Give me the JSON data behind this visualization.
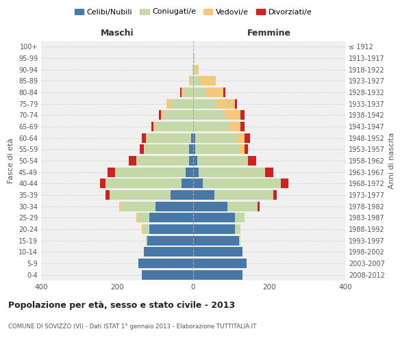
{
  "age_groups": [
    "0-4",
    "5-9",
    "10-14",
    "15-19",
    "20-24",
    "25-29",
    "30-34",
    "35-39",
    "40-44",
    "45-49",
    "50-54",
    "55-59",
    "60-64",
    "65-69",
    "70-74",
    "75-79",
    "80-84",
    "85-89",
    "90-94",
    "95-99",
    "100+"
  ],
  "birth_years": [
    "2008-2012",
    "2003-2007",
    "1998-2002",
    "1993-1997",
    "1988-1992",
    "1983-1987",
    "1978-1982",
    "1973-1977",
    "1968-1972",
    "1963-1967",
    "1958-1962",
    "1953-1957",
    "1948-1952",
    "1943-1947",
    "1938-1942",
    "1933-1937",
    "1928-1932",
    "1923-1927",
    "1918-1922",
    "1913-1917",
    "≤ 1912"
  ],
  "males": {
    "celibi": [
      135,
      145,
      130,
      120,
      115,
      115,
      100,
      60,
      30,
      20,
      10,
      10,
      5,
      0,
      0,
      0,
      0,
      0,
      0,
      0,
      0
    ],
    "coniugati": [
      0,
      0,
      0,
      5,
      15,
      30,
      90,
      160,
      200,
      185,
      140,
      120,
      115,
      100,
      80,
      60,
      25,
      5,
      2,
      0,
      0
    ],
    "vedovi": [
      0,
      0,
      0,
      0,
      5,
      5,
      5,
      0,
      0,
      0,
      0,
      0,
      5,
      5,
      5,
      10,
      5,
      5,
      0,
      0,
      0
    ],
    "divorziati": [
      0,
      0,
      0,
      0,
      0,
      0,
      0,
      10,
      15,
      20,
      20,
      10,
      10,
      5,
      5,
      0,
      5,
      0,
      0,
      0,
      0
    ]
  },
  "females": {
    "nubili": [
      130,
      140,
      130,
      120,
      110,
      110,
      90,
      55,
      25,
      15,
      10,
      5,
      5,
      0,
      0,
      0,
      0,
      0,
      0,
      0,
      0
    ],
    "coniugate": [
      0,
      0,
      0,
      5,
      15,
      25,
      80,
      155,
      205,
      175,
      130,
      115,
      110,
      95,
      85,
      65,
      35,
      20,
      5,
      2,
      0
    ],
    "vedove": [
      0,
      0,
      0,
      0,
      0,
      0,
      0,
      0,
      0,
      0,
      5,
      15,
      20,
      30,
      40,
      45,
      45,
      40,
      10,
      2,
      0
    ],
    "divorziate": [
      0,
      0,
      0,
      0,
      0,
      0,
      5,
      10,
      20,
      20,
      20,
      10,
      15,
      10,
      10,
      5,
      5,
      0,
      0,
      0,
      0
    ]
  },
  "colors": {
    "celibi": "#4878a8",
    "coniugati": "#c5d9a8",
    "vedovi": "#f5c87a",
    "divorziati": "#cc2222"
  },
  "xlim": 400,
  "title": "Popolazione per età, sesso e stato civile - 2013",
  "subtitle": "COMUNE DI SOVIZZO (VI) - Dati ISTAT 1° gennaio 2013 - Elaborazione TUTTITALIA.IT",
  "xlabel_left": "Maschi",
  "xlabel_right": "Femmine",
  "ylabel_left": "Fasce di età",
  "ylabel_right": "Anni di nascita",
  "bg_color": "#f0f0f0",
  "grid_color": "#cccccc"
}
